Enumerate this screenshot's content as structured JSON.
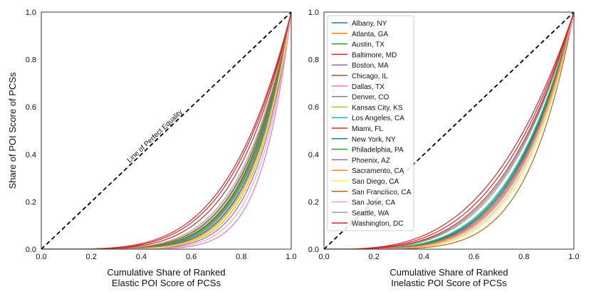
{
  "colors": {
    "Albany, NY": "#1f77b4",
    "Atlanta, GA": "#ff7f0e",
    "Austin, TX": "#2ca02c",
    "Baltimore, MD": "#d62728",
    "Boston, MA": "#9467bd",
    "Chicago, IL": "#8c564b",
    "Dallas, TX": "#e377c2",
    "Denver, CO": "#7f7f7f",
    "Kansas City, KS": "#bcbd22",
    "Los Angeles, CA": "#17becf",
    "Miami, FL": "#d62728",
    "New York, NY": "#1f77b4",
    "Philadelphia, PA": "#2ca02c",
    "Phoenix, AZ": "#9467bd",
    "Sacramento, CA": "#ff7f0e",
    "San Diego, CA": "#f5f542",
    "San Francisco, CA": "#b5651d",
    "San Jose, CA": "#ff9ecf",
    "Seattle, WA": "#999999",
    "Washington, DC": "#d62728"
  },
  "chart_data": [
    {
      "type": "line",
      "panel": "left",
      "xlabel": "Cumulative Share of Ranked\nElastic POI Score of PCSs",
      "ylabel": "Share of POI Score of PCSs",
      "xlim": [
        0.0,
        1.0
      ],
      "ylim": [
        0.0,
        1.0
      ],
      "xticks": [
        "0.0",
        "0.2",
        "0.4",
        "0.6",
        "0.8",
        "1.0"
      ],
      "yticks": [
        "0.0",
        "0.2",
        "0.4",
        "0.6",
        "0.8",
        "1.0"
      ],
      "equality_line": {
        "x": [
          0.0,
          1.0
        ],
        "y": [
          0.0,
          1.0
        ],
        "label": "Line of Perfect Equality"
      },
      "curve_model": "y = x^exponent",
      "series": [
        {
          "name": "Albany, NY",
          "exponent": 5.6
        },
        {
          "name": "Atlanta, GA",
          "exponent": 5.8
        },
        {
          "name": "Austin, TX",
          "exponent": 5.9
        },
        {
          "name": "Baltimore, MD",
          "exponent": 4.3
        },
        {
          "name": "Boston, MA",
          "exponent": 7.2
        },
        {
          "name": "Chicago, IL",
          "exponent": 5.5
        },
        {
          "name": "Dallas, TX",
          "exponent": 8.6
        },
        {
          "name": "Denver, CO",
          "exponent": 5.2
        },
        {
          "name": "Kansas City, KS",
          "exponent": 6.8
        },
        {
          "name": "Los Angeles, CA",
          "exponent": 5.7
        },
        {
          "name": "Miami, FL",
          "exponent": 4.1
        },
        {
          "name": "New York, NY",
          "exponent": 6.2
        },
        {
          "name": "Philadelphia, PA",
          "exponent": 5.6
        },
        {
          "name": "Phoenix, AZ",
          "exponent": 6.1
        },
        {
          "name": "Sacramento, CA",
          "exponent": 6.4
        },
        {
          "name": "San Diego, CA",
          "exponent": 6.6
        },
        {
          "name": "San Francisco, CA",
          "exponent": 5.3
        },
        {
          "name": "San Jose, CA",
          "exponent": 7.8
        },
        {
          "name": "Seattle, WA",
          "exponent": 5.0
        },
        {
          "name": "Washington, DC",
          "exponent": 4.6
        }
      ]
    },
    {
      "type": "line",
      "panel": "right",
      "xlabel": "Cumulative Share of Ranked\nInelastic POI Score of PCSs",
      "ylabel": "",
      "xlim": [
        0.0,
        1.0
      ],
      "ylim": [
        0.0,
        1.0
      ],
      "xticks": [
        "0.0",
        "0.2",
        "0.4",
        "0.6",
        "0.8",
        "1.0"
      ],
      "yticks": [
        "0.0",
        "0.2",
        "0.4",
        "0.6",
        "0.8",
        "1.0"
      ],
      "equality_line": {
        "x": [
          0.0,
          1.0
        ],
        "y": [
          0.0,
          1.0
        ],
        "label": ""
      },
      "curve_model": "y = x^exponent",
      "legend": {
        "position": "upper-left",
        "entries": [
          "Albany, NY",
          "Atlanta, GA",
          "Austin, TX",
          "Baltimore, MD",
          "Boston, MA",
          "Chicago, IL",
          "Dallas, TX",
          "Denver, CO",
          "Kansas City, KS",
          "Los Angeles, CA",
          "Miami, FL",
          "New York, NY",
          "Philadelphia, PA",
          "Phoenix, AZ",
          "Sacramento, CA",
          "San Diego, CA",
          "San Francisco, CA",
          "San Jose, CA",
          "Seattle, WA",
          "Washington, DC"
        ]
      },
      "series": [
        {
          "name": "Albany, NY",
          "exponent": 4.0
        },
        {
          "name": "Atlanta, GA",
          "exponent": 4.1
        },
        {
          "name": "Austin, TX",
          "exponent": 4.0
        },
        {
          "name": "Baltimore, MD",
          "exponent": 3.3
        },
        {
          "name": "Boston, MA",
          "exponent": 4.3
        },
        {
          "name": "Chicago, IL",
          "exponent": 4.2
        },
        {
          "name": "Dallas, TX",
          "exponent": 4.5
        },
        {
          "name": "Denver, CO",
          "exponent": 3.6
        },
        {
          "name": "Kansas City, KS",
          "exponent": 4.6
        },
        {
          "name": "Los Angeles, CA",
          "exponent": 4.0
        },
        {
          "name": "Miami, FL",
          "exponent": 3.1
        },
        {
          "name": "New York, NY",
          "exponent": 4.2
        },
        {
          "name": "Philadelphia, PA",
          "exponent": 4.1
        },
        {
          "name": "Phoenix, AZ",
          "exponent": 4.4
        },
        {
          "name": "Sacramento, CA",
          "exponent": 4.4
        },
        {
          "name": "San Diego, CA",
          "exponent": 5.0
        },
        {
          "name": "San Francisco, CA",
          "exponent": 5.5
        },
        {
          "name": "San Jose, CA",
          "exponent": 4.8
        },
        {
          "name": "Seattle, WA",
          "exponent": 3.7
        },
        {
          "name": "Washington, DC",
          "exponent": 3.5
        }
      ]
    }
  ]
}
